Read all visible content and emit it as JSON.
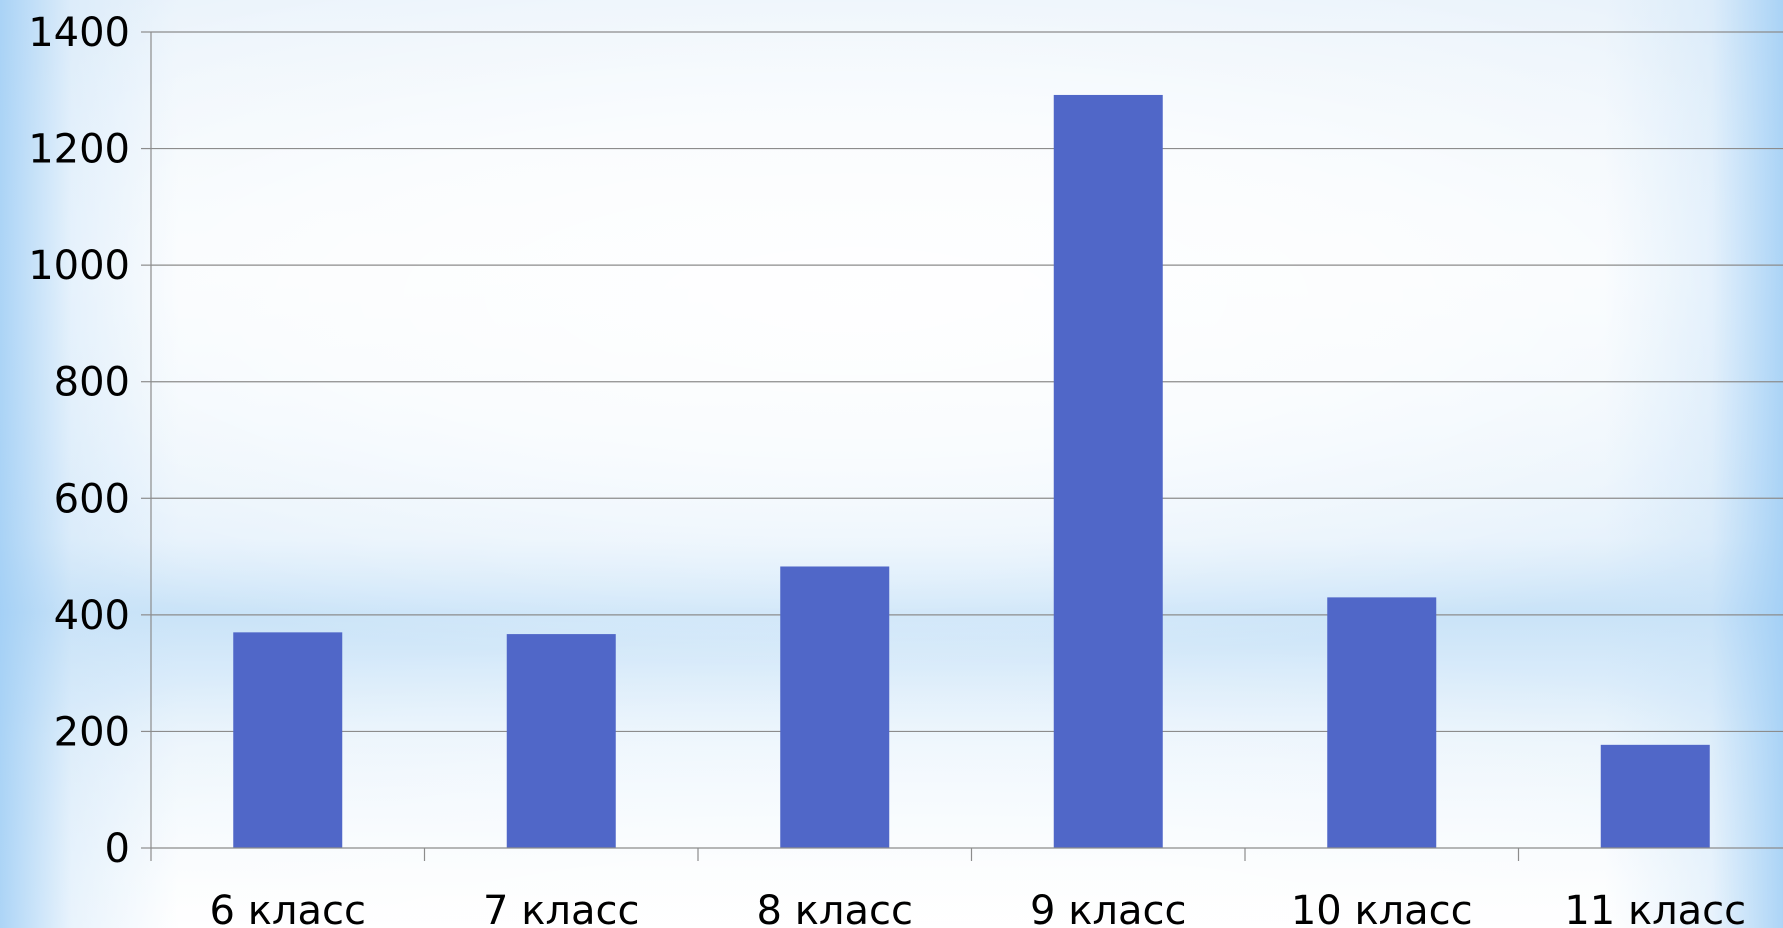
{
  "chart_data": {
    "type": "bar",
    "categories": [
      "6 класс",
      "7 класс",
      "8 класс",
      "9 класс",
      "10 класс",
      "11 класс"
    ],
    "values": [
      370,
      367,
      483,
      1292,
      430,
      177
    ],
    "title": "",
    "xlabel": "",
    "ylabel": "",
    "ylim": [
      0,
      1400
    ],
    "yticks": [
      "0",
      "200",
      "400",
      "600",
      "800",
      "1000",
      "1200",
      "1400"
    ],
    "grid": true,
    "legend": "none",
    "bar_color": "#5067c8"
  }
}
